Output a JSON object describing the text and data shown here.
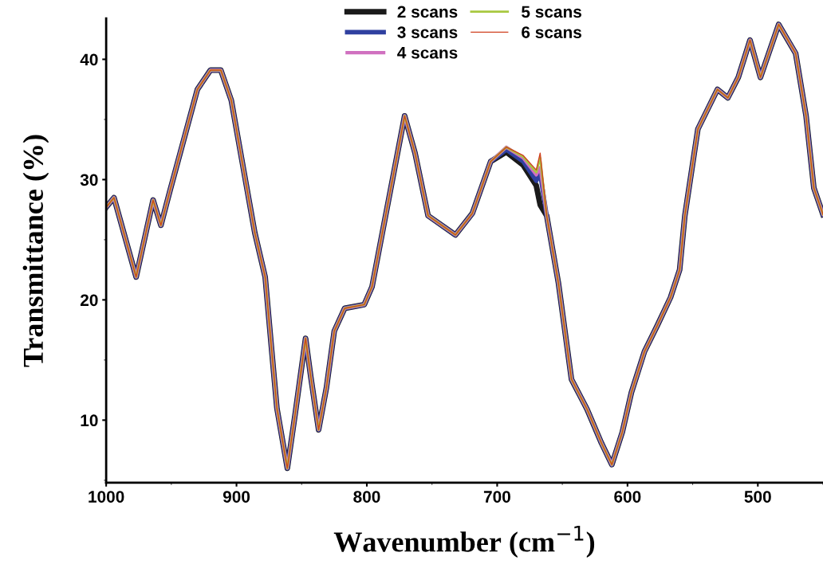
{
  "chart_data": {
    "type": "line",
    "xlabel": "Wavenumber (cm$^{−1}$)",
    "ylabel": "Transmittance (%)",
    "x": [
      1000,
      994,
      977,
      964,
      958,
      951,
      939,
      930,
      920,
      912,
      904,
      896,
      886,
      878,
      873,
      869,
      861,
      855,
      847,
      843,
      837,
      831,
      825,
      817,
      802,
      796,
      771,
      763,
      753,
      732,
      719,
      705,
      693,
      680,
      670,
      667,
      662,
      653,
      643,
      631,
      620,
      612,
      604,
      597,
      587,
      577,
      567,
      560,
      556,
      546,
      531,
      523,
      515,
      506,
      498,
      484,
      471,
      463,
      457,
      450
    ],
    "xlim": [
      1000,
      450
    ],
    "xticks": [
      1000,
      900,
      800,
      700,
      600,
      500
    ],
    "ylim": [
      4.8,
      43.4
    ],
    "yticks": [
      10,
      20,
      30,
      40
    ],
    "grid": false,
    "legend": "top",
    "marker": "none",
    "line_style": "solid",
    "series": [
      {
        "name": "2 scans",
        "color": "#1a1a1a",
        "values": [
          27.7,
          28.5,
          21.9,
          28.3,
          26.2,
          29.1,
          33.9,
          37.5,
          39.1,
          39.1,
          36.6,
          31.7,
          25.6,
          21.9,
          15.8,
          11.0,
          6.0,
          10.5,
          16.8,
          13.6,
          9.2,
          12.7,
          17.4,
          19.3,
          19.6,
          21.1,
          35.3,
          32.2,
          27.0,
          25.4,
          27.2,
          31.5,
          32.3,
          31.2,
          29.5,
          27.9,
          27.0,
          21.4,
          13.4,
          10.9,
          8.1,
          6.3,
          9.0,
          12.3,
          15.7,
          17.9,
          20.2,
          22.5,
          27.0,
          34.2,
          37.5,
          36.8,
          38.5,
          41.6,
          38.5,
          42.9,
          40.5,
          35.3,
          29.3,
          27.1
        ]
      },
      {
        "name": "3 scans",
        "color": "#3040a0",
        "values": [
          27.7,
          28.5,
          21.9,
          28.3,
          26.2,
          29.1,
          33.9,
          37.5,
          39.1,
          39.1,
          36.6,
          31.7,
          25.6,
          21.9,
          15.8,
          11.0,
          6.0,
          10.5,
          16.8,
          13.6,
          9.2,
          12.7,
          17.4,
          19.3,
          19.6,
          21.1,
          35.3,
          32.2,
          27.0,
          25.4,
          27.2,
          31.5,
          32.5,
          31.5,
          29.9,
          30.5,
          27.0,
          21.4,
          13.4,
          10.9,
          8.1,
          6.3,
          9.0,
          12.3,
          15.7,
          17.9,
          20.2,
          22.5,
          27.0,
          34.2,
          37.5,
          36.8,
          38.5,
          41.6,
          38.5,
          42.9,
          40.5,
          35.3,
          29.3,
          27.1
        ]
      },
      {
        "name": "4 scans",
        "color": "#d070c0",
        "values": [
          27.7,
          28.5,
          21.9,
          28.3,
          26.2,
          29.1,
          33.9,
          37.5,
          39.1,
          39.1,
          36.6,
          31.7,
          25.6,
          21.9,
          15.8,
          11.0,
          6.0,
          10.5,
          16.8,
          13.6,
          9.2,
          12.7,
          17.4,
          19.3,
          19.6,
          21.1,
          35.3,
          32.2,
          27.0,
          25.4,
          27.2,
          31.5,
          32.7,
          31.8,
          30.4,
          31.0,
          27.0,
          21.4,
          13.4,
          10.9,
          8.1,
          6.3,
          9.0,
          12.3,
          15.7,
          17.9,
          20.2,
          22.5,
          27.0,
          34.2,
          37.5,
          36.8,
          38.5,
          41.6,
          38.5,
          42.9,
          40.5,
          35.3,
          29.3,
          27.1
        ]
      },
      {
        "name": "5 scans",
        "color": "#a8c840",
        "values": [
          27.7,
          28.5,
          21.9,
          28.3,
          26.2,
          29.1,
          33.9,
          37.5,
          39.1,
          39.1,
          36.6,
          31.7,
          25.6,
          21.9,
          15.8,
          11.0,
          6.0,
          10.5,
          16.8,
          13.6,
          9.2,
          12.7,
          17.4,
          19.3,
          19.6,
          21.1,
          35.3,
          32.2,
          27.0,
          25.4,
          27.2,
          31.5,
          32.7,
          31.9,
          30.6,
          31.8,
          27.0,
          21.4,
          13.4,
          10.9,
          8.1,
          6.3,
          9.0,
          12.3,
          15.7,
          17.9,
          20.2,
          22.5,
          27.0,
          34.2,
          37.5,
          36.8,
          38.5,
          41.6,
          38.5,
          42.9,
          40.5,
          35.3,
          29.3,
          27.1
        ]
      },
      {
        "name": "6 scans",
        "color": "#d04020",
        "values": [
          27.7,
          28.5,
          21.9,
          28.3,
          26.2,
          29.1,
          33.9,
          37.5,
          39.1,
          39.1,
          36.6,
          31.7,
          25.6,
          21.9,
          15.8,
          11.0,
          6.0,
          10.5,
          16.8,
          13.6,
          9.2,
          12.7,
          17.4,
          19.3,
          19.6,
          21.1,
          35.3,
          32.2,
          27.0,
          25.4,
          27.2,
          31.5,
          32.7,
          32.0,
          30.8,
          32.2,
          27.0,
          21.4,
          13.4,
          10.9,
          8.1,
          6.3,
          9.0,
          12.3,
          15.7,
          17.9,
          20.2,
          22.5,
          27.0,
          34.2,
          37.5,
          36.8,
          38.5,
          41.6,
          38.5,
          42.9,
          40.5,
          35.3,
          29.3,
          27.1
        ]
      }
    ]
  }
}
